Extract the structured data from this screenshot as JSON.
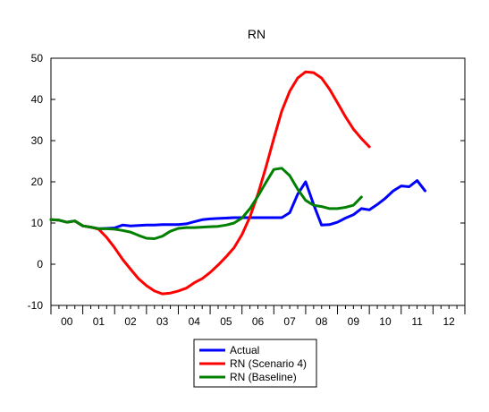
{
  "chart_data": {
    "type": "line",
    "title": "RN",
    "xlabel": "",
    "ylabel": "",
    "ylim": [
      -10,
      50
    ],
    "yticks": [
      -10,
      0,
      10,
      20,
      30,
      40,
      50
    ],
    "x_tick_labels": [
      "00",
      "01",
      "02",
      "03",
      "04",
      "05",
      "06",
      "07",
      "08",
      "09",
      "10",
      "11",
      "12"
    ],
    "x_range": [
      2000,
      2013
    ],
    "grid": false,
    "legend_position": "bottom-center",
    "series": [
      {
        "name": "Actual",
        "color": "#0000ff",
        "points": [
          [
            2000.0,
            10.8
          ],
          [
            2000.25,
            10.7
          ],
          [
            2000.5,
            10.2
          ],
          [
            2000.75,
            10.5
          ],
          [
            2001.0,
            9.3
          ],
          [
            2001.25,
            9.0
          ],
          [
            2001.5,
            8.6
          ],
          [
            2001.75,
            8.7
          ],
          [
            2002.0,
            8.8
          ],
          [
            2002.25,
            9.5
          ],
          [
            2002.5,
            9.3
          ],
          [
            2002.75,
            9.4
          ],
          [
            2003.0,
            9.5
          ],
          [
            2003.25,
            9.5
          ],
          [
            2003.5,
            9.6
          ],
          [
            2003.75,
            9.6
          ],
          [
            2004.0,
            9.6
          ],
          [
            2004.25,
            9.8
          ],
          [
            2004.5,
            10.3
          ],
          [
            2004.75,
            10.8
          ],
          [
            2005.0,
            11.0
          ],
          [
            2005.25,
            11.1
          ],
          [
            2005.5,
            11.2
          ],
          [
            2005.75,
            11.3
          ],
          [
            2006.0,
            11.3
          ],
          [
            2006.25,
            11.3
          ],
          [
            2006.5,
            11.3
          ],
          [
            2006.75,
            11.3
          ],
          [
            2007.0,
            11.3
          ],
          [
            2007.25,
            11.3
          ],
          [
            2007.5,
            12.5
          ],
          [
            2007.75,
            17.0
          ],
          [
            2008.0,
            20.0
          ],
          [
            2008.25,
            14.5
          ],
          [
            2008.5,
            9.5
          ],
          [
            2008.75,
            9.6
          ],
          [
            2009.0,
            10.2
          ],
          [
            2009.25,
            11.2
          ],
          [
            2009.5,
            12.0
          ],
          [
            2009.75,
            13.5
          ],
          [
            2010.0,
            13.2
          ],
          [
            2010.25,
            14.5
          ],
          [
            2010.5,
            16.0
          ],
          [
            2010.75,
            17.8
          ],
          [
            2011.0,
            19.0
          ],
          [
            2011.25,
            18.8
          ],
          [
            2011.5,
            20.3
          ],
          [
            2011.75,
            17.8
          ]
        ]
      },
      {
        "name": "RN (Scenario 4)",
        "color": "#ff0000",
        "points": [
          [
            2000.0,
            10.8
          ],
          [
            2000.25,
            10.7
          ],
          [
            2000.5,
            10.2
          ],
          [
            2000.75,
            10.5
          ],
          [
            2001.0,
            9.3
          ],
          [
            2001.25,
            9.0
          ],
          [
            2001.5,
            8.5
          ],
          [
            2001.75,
            6.5
          ],
          [
            2002.0,
            4.0
          ],
          [
            2002.25,
            1.2
          ],
          [
            2002.5,
            -1.2
          ],
          [
            2002.75,
            -3.5
          ],
          [
            2003.0,
            -5.2
          ],
          [
            2003.25,
            -6.5
          ],
          [
            2003.5,
            -7.2
          ],
          [
            2003.75,
            -7.0
          ],
          [
            2004.0,
            -6.5
          ],
          [
            2004.25,
            -5.8
          ],
          [
            2004.5,
            -4.5
          ],
          [
            2004.75,
            -3.5
          ],
          [
            2005.0,
            -2.0
          ],
          [
            2005.25,
            -0.2
          ],
          [
            2005.5,
            1.8
          ],
          [
            2005.75,
            4.0
          ],
          [
            2006.0,
            7.2
          ],
          [
            2006.25,
            11.5
          ],
          [
            2006.5,
            17.0
          ],
          [
            2006.75,
            23.5
          ],
          [
            2007.0,
            30.5
          ],
          [
            2007.25,
            37.2
          ],
          [
            2007.5,
            42.0
          ],
          [
            2007.75,
            45.2
          ],
          [
            2008.0,
            46.7
          ],
          [
            2008.25,
            46.5
          ],
          [
            2008.5,
            45.2
          ],
          [
            2008.75,
            42.5
          ],
          [
            2009.0,
            39.2
          ],
          [
            2009.25,
            35.8
          ],
          [
            2009.5,
            32.8
          ],
          [
            2009.75,
            30.5
          ],
          [
            2010.0,
            28.5
          ]
        ]
      },
      {
        "name": "RN (Baseline)",
        "color": "#008000",
        "points": [
          [
            2000.0,
            10.8
          ],
          [
            2000.25,
            10.7
          ],
          [
            2000.5,
            10.2
          ],
          [
            2000.75,
            10.5
          ],
          [
            2001.0,
            9.3
          ],
          [
            2001.25,
            9.0
          ],
          [
            2001.5,
            8.6
          ],
          [
            2001.75,
            8.6
          ],
          [
            2002.0,
            8.5
          ],
          [
            2002.25,
            8.2
          ],
          [
            2002.5,
            7.8
          ],
          [
            2002.75,
            7.0
          ],
          [
            2003.0,
            6.3
          ],
          [
            2003.25,
            6.2
          ],
          [
            2003.5,
            6.8
          ],
          [
            2003.75,
            8.0
          ],
          [
            2004.0,
            8.7
          ],
          [
            2004.25,
            8.9
          ],
          [
            2004.5,
            8.9
          ],
          [
            2004.75,
            9.0
          ],
          [
            2005.0,
            9.1
          ],
          [
            2005.25,
            9.2
          ],
          [
            2005.5,
            9.5
          ],
          [
            2005.75,
            10.0
          ],
          [
            2006.0,
            11.2
          ],
          [
            2006.25,
            13.5
          ],
          [
            2006.5,
            16.5
          ],
          [
            2006.75,
            19.8
          ],
          [
            2007.0,
            23.0
          ],
          [
            2007.25,
            23.3
          ],
          [
            2007.5,
            21.5
          ],
          [
            2007.75,
            18.2
          ],
          [
            2008.0,
            15.5
          ],
          [
            2008.25,
            14.3
          ],
          [
            2008.5,
            14.0
          ],
          [
            2008.75,
            13.5
          ],
          [
            2009.0,
            13.5
          ],
          [
            2009.25,
            13.8
          ],
          [
            2009.5,
            14.3
          ],
          [
            2009.75,
            16.3
          ]
        ]
      }
    ]
  }
}
